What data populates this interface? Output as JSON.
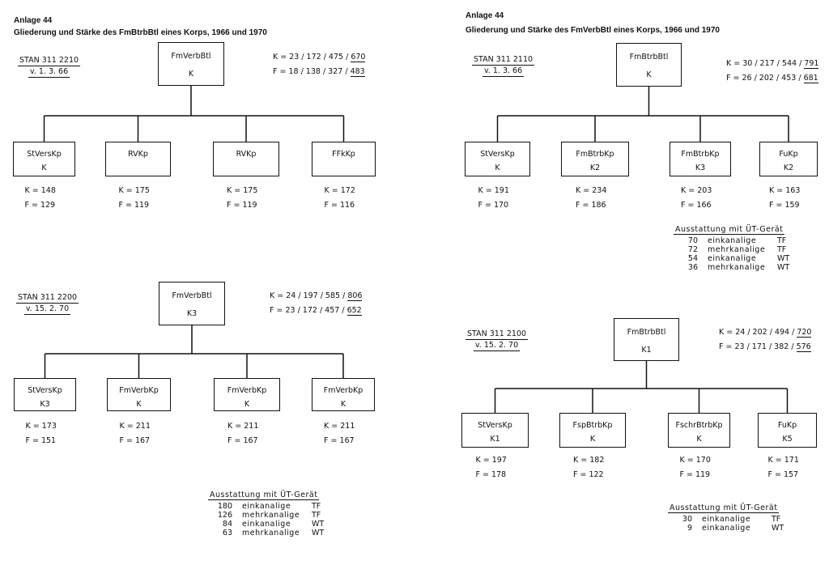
{
  "left_header": {
    "annex": "Anlage 44",
    "title": "Gliederung und Stärke des FmBtrbBtl eines Korps, 1966 und 1970"
  },
  "right_header": {
    "annex": "Anlage 44",
    "title": "Gliederung und Stärke des FmVerbBtl eines Korps, 1966 und 1970"
  },
  "charts": [
    {
      "stan": [
        "STAN 311 2210",
        "v. 1. 3. 66"
      ],
      "root": {
        "name": "FmVerbBtl",
        "type": "K"
      },
      "k_line": {
        "prefix": "K = 23 / 172 / 475 /",
        "total": "670"
      },
      "f_line": {
        "prefix": "F = 18 / 138 / 327 /",
        "total": "483"
      },
      "units": [
        {
          "name": "StVersKp",
          "type": "K",
          "k": "K = 148",
          "f": "F = 129"
        },
        {
          "name": "RVKp",
          "type": "",
          "k": "K = 175",
          "f": "F = 119"
        },
        {
          "name": "RVKp",
          "type": "",
          "k": "K = 175",
          "f": "F = 119"
        },
        {
          "name": "FFkKp",
          "type": "",
          "k": "K = 172",
          "f": "F = 116"
        }
      ],
      "equipment": null
    },
    {
      "stan": [
        "STAN 311 2110",
        "v. 1. 3. 66"
      ],
      "root": {
        "name": "FmBtrbBtl",
        "type": "K"
      },
      "k_line": {
        "prefix": "K = 30 / 217 / 544 /",
        "total": "791"
      },
      "f_line": {
        "prefix": "F = 26 / 202 / 453 /",
        "total": "681"
      },
      "units": [
        {
          "name": "StVersKp",
          "type": "K",
          "k": "K = 191",
          "f": "F = 170"
        },
        {
          "name": "FmBtrbKp",
          "type": "K2",
          "k": "K = 234",
          "f": "F = 186"
        },
        {
          "name": "FmBtrbKp",
          "type": "K3",
          "k": "K = 203",
          "f": "F = 166"
        },
        {
          "name": "FuKp",
          "type": "K2",
          "k": "K = 163",
          "f": "F = 159"
        }
      ],
      "equipment": {
        "title": "Ausstattung mit ÜT-Gerät",
        "rows": [
          {
            "count": "70",
            "kind": "einkanalige",
            "code": "TF"
          },
          {
            "count": "72",
            "kind": "mehrkanalige",
            "code": "TF"
          },
          {
            "count": "54",
            "kind": "einkanalige",
            "code": "WT"
          },
          {
            "count": "36",
            "kind": "mehrkanalige",
            "code": "WT"
          }
        ]
      }
    },
    {
      "stan": [
        "STAN 311 2200",
        "v. 15. 2. 70"
      ],
      "root": {
        "name": "FmVerbBtl",
        "type": "K3"
      },
      "k_line": {
        "prefix": "K = 24 / 197 / 585 /",
        "total": "806"
      },
      "f_line": {
        "prefix": "F = 23 / 172 / 457 /",
        "total": "652"
      },
      "units": [
        {
          "name": "StVersKp",
          "type": "K3",
          "k": "K = 173",
          "f": "F = 151"
        },
        {
          "name": "FmVerbKp",
          "type": "K",
          "k": "K = 211",
          "f": "F = 167"
        },
        {
          "name": "FmVerbKp",
          "type": "K",
          "k": "K = 211",
          "f": "F = 167"
        },
        {
          "name": "FmVerbKp",
          "type": "K",
          "k": "K = 211",
          "f": "F = 167"
        }
      ],
      "equipment": {
        "title": "Ausstattung mit ÜT-Gerät",
        "rows": [
          {
            "count": "180",
            "kind": "einkanalige",
            "code": "TF"
          },
          {
            "count": "126",
            "kind": "mehrkanalige",
            "code": "TF"
          },
          {
            "count": "84",
            "kind": "einkanalige",
            "code": "WT"
          },
          {
            "count": "63",
            "kind": "mehrkanalige",
            "code": "WT"
          }
        ]
      }
    },
    {
      "stan": [
        "STAN 311 2100",
        "v. 15. 2. 70"
      ],
      "root": {
        "name": "FmBtrbBtl",
        "type": "K1"
      },
      "k_line": {
        "prefix": "K = 24 / 202 / 494 /",
        "total": "720"
      },
      "f_line": {
        "prefix": "F = 23 / 171 / 382 /",
        "total": "576"
      },
      "units": [
        {
          "name": "StVersKp",
          "type": "K1",
          "k": "K = 197",
          "f": "F = 178"
        },
        {
          "name": "FspBtrbKp",
          "type": "K",
          "k": "K = 182",
          "f": "F = 122"
        },
        {
          "name": "FschrBtrbKp",
          "type": "K",
          "k": "K = 170",
          "f": "F = 119"
        },
        {
          "name": "FuKp",
          "type": "K5",
          "k": "K = 171",
          "f": "F = 157"
        }
      ],
      "equipment": {
        "title": "Ausstattung mit ÜT-Gerät",
        "rows": [
          {
            "count": "30",
            "kind": "einkanalige",
            "code": "TF"
          },
          {
            "count": "9",
            "kind": "einkanalige",
            "code": "WT"
          }
        ]
      }
    }
  ]
}
